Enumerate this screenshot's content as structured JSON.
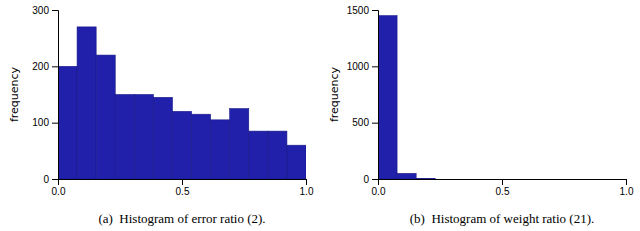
{
  "chart_data": [
    {
      "type": "histogram",
      "title": "(a)  Histogram of error ratio (2).",
      "ylabel": "frequency",
      "bins": [
        0,
        0.07692307692307693,
        0.15384615384615385,
        0.23076923076923078,
        0.3076923076923077,
        0.38461538461538464,
        0.46153846153846156,
        0.5384615384615384,
        0.6153846153846154,
        0.6923076923076923,
        0.7692307692307693,
        0.8461538461538461,
        0.9230769230769231,
        1
      ],
      "values": [
        200,
        270,
        220,
        150,
        150,
        145,
        120,
        115,
        105,
        125,
        85,
        85,
        60
      ],
      "color": "#2020aa",
      "xlim": [
        0,
        1
      ],
      "ylim": [
        0,
        300
      ],
      "xticks": [
        {
          "value": 0,
          "label": "0.0"
        },
        {
          "value": 0.5,
          "label": "0.5"
        },
        {
          "value": 1,
          "label": "1.0"
        }
      ],
      "yticks": [
        0,
        100,
        200,
        300
      ]
    },
    {
      "type": "histogram",
      "title": "(b)  Histogram of weight ratio (21).",
      "ylabel": "frequency",
      "bins": [
        0,
        0.07692307692307693,
        0.15384615384615385,
        0.23076923076923078,
        0.3076923076923077,
        0.38461538461538464,
        0.46153846153846156,
        0.5384615384615384,
        0.6153846153846154,
        0.6923076923076923,
        0.7692307692307693,
        0.8461538461538461,
        0.9230769230769231,
        1
      ],
      "values": [
        1450,
        50,
        4,
        0,
        0,
        0,
        0,
        0,
        0,
        0,
        0,
        0,
        0
      ],
      "color": "#2020aa",
      "xlim": [
        0,
        1
      ],
      "ylim": [
        0,
        1500
      ],
      "xticks": [
        {
          "value": 0,
          "label": "0.0"
        },
        {
          "value": 0.5,
          "label": "0.5"
        },
        {
          "value": 1,
          "label": "1.0"
        }
      ],
      "yticks": [
        0,
        500,
        1000,
        1500
      ]
    }
  ]
}
